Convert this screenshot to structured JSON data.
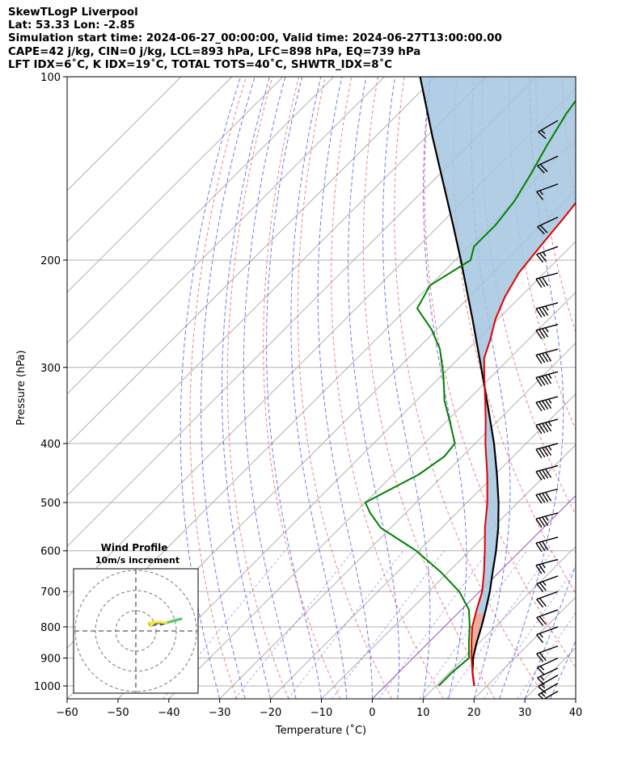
{
  "titles": [
    "SkewTLogP Liverpool",
    "Lat: 53.33   Lon: -2.85",
    "Simulation start time: 2024-06-27_00:00:00, Valid time: 2024-06-27T13:00:00.00",
    "CAPE=42 j/kg, CIN=0 j/kg, LCL=893 hPa, LFC=898 hPa, EQ=739 hPa",
    "LFT IDX=6˚C, K IDX=19˚C, TOTAL TOTS=40˚C, SHWTR_IDX=8˚C"
  ],
  "chart_data": {
    "type": "line",
    "subtype": "skewt-logp",
    "xlabel": "Temperature (˚C)",
    "ylabel": "Pressure (hPa)",
    "xlim": [
      -60,
      40
    ],
    "ylim": [
      1050,
      100
    ],
    "y_scale": "log",
    "x_ticks": [
      -60,
      -50,
      -40,
      -30,
      -20,
      -10,
      0,
      10,
      20,
      30,
      40
    ],
    "x_tick_labels": [
      "−60",
      "−50",
      "−40",
      "−30",
      "−20",
      "−10",
      "0",
      "10",
      "20",
      "30",
      "40"
    ],
    "y_ticks": [
      1000,
      900,
      800,
      700,
      600,
      500,
      400,
      300,
      200,
      100
    ],
    "y_tick_labels": [
      "1000",
      "900",
      "800",
      "700",
      "600",
      "500",
      "400",
      "300",
      "200",
      "100"
    ],
    "grid": true,
    "colors": {
      "temperature": "#e00000",
      "dewpoint": "#008000",
      "parcel": "#000000",
      "cape_fill": "#a3c6e0",
      "cin_fill": "#e8a090",
      "dry_adiabat": "#f06060",
      "moist_adiabat": "#4a5af0",
      "mixing_ratio": "#7070e8",
      "isotherm": "#b0b0b0",
      "zero_isotherm": "#9050c0"
    },
    "series": [
      {
        "key": "temperature",
        "pressure": [
          1000,
          950,
          900,
          850,
          800,
          750,
          700,
          650,
          600,
          550,
          500,
          450,
          400,
          370,
          340,
          310,
          290,
          270,
          250,
          230,
          210,
          190,
          170,
          155,
          140,
          125,
          115,
          108,
          100
        ],
        "temperature": [
          17.5,
          14.5,
          11.5,
          8.5,
          5.5,
          3.0,
          0.5,
          -3.0,
          -7.0,
          -11.5,
          -16.0,
          -21.5,
          -28.0,
          -32.0,
          -36.5,
          -41.5,
          -45.0,
          -47.5,
          -50.5,
          -53.0,
          -55.0,
          -56.0,
          -57.0,
          -58.0,
          -57.5,
          -55.0,
          -52.0,
          -52.0,
          -52.0
        ]
      },
      {
        "key": "dewpoint",
        "pressure": [
          1000,
          950,
          900,
          850,
          800,
          750,
          700,
          650,
          600,
          550,
          520,
          500,
          450,
          420,
          400,
          370,
          340,
          310,
          280,
          260,
          240,
          220,
          200,
          190,
          175,
          160,
          145,
          130,
          115,
          100
        ],
        "temperature": [
          10.5,
          10.5,
          11.0,
          8.0,
          5.0,
          1.5,
          -4.0,
          -11.5,
          -20.5,
          -32.0,
          -37.0,
          -40.0,
          -35.0,
          -33.5,
          -34.0,
          -39.0,
          -44.5,
          -49.5,
          -55.5,
          -61.0,
          -68.0,
          -70.0,
          -67.0,
          -69.0,
          -69.0,
          -70.0,
          -72.0,
          -74.5,
          -77.0,
          -79.0
        ]
      },
      {
        "key": "parcel",
        "pressure": [
          1000,
          950,
          900,
          850,
          800,
          750,
          700,
          650,
          600,
          550,
          500,
          450,
          400,
          350,
          300,
          250,
          200,
          175,
          150,
          125,
          100
        ],
        "temperature": [
          17.5,
          14.5,
          11.8,
          9.5,
          7.3,
          4.8,
          2.0,
          -1.3,
          -4.8,
          -8.9,
          -13.8,
          -19.6,
          -26.3,
          -34.4,
          -43.8,
          -55.0,
          -68.9,
          -77.4,
          -87.3,
          -99.0,
          -113.0
        ]
      }
    ],
    "wind_barbs": {
      "pressure": [
        1020,
        990,
        960,
        935,
        900,
        860,
        800,
        750,
        700,
        660,
        620,
        570,
        520,
        475,
        435,
        400,
        365,
        335,
        305,
        280,
        255,
        235,
        210,
        190,
        170,
        150,
        135,
        118
      ],
      "speed_kt": [
        15,
        15,
        15,
        15,
        15,
        20,
        15,
        20,
        20,
        25,
        25,
        30,
        35,
        40,
        40,
        45,
        45,
        45,
        45,
        40,
        35,
        35,
        30,
        25,
        20,
        15,
        20,
        15
      ],
      "direction_deg": [
        240,
        240,
        240,
        245,
        245,
        250,
        250,
        250,
        250,
        250,
        255,
        255,
        255,
        255,
        255,
        255,
        255,
        255,
        255,
        255,
        255,
        255,
        255,
        250,
        245,
        250,
        245,
        240
      ]
    },
    "hodograph": {
      "title": "Wind Profile",
      "subtitle": "10m/s increment"
    }
  }
}
